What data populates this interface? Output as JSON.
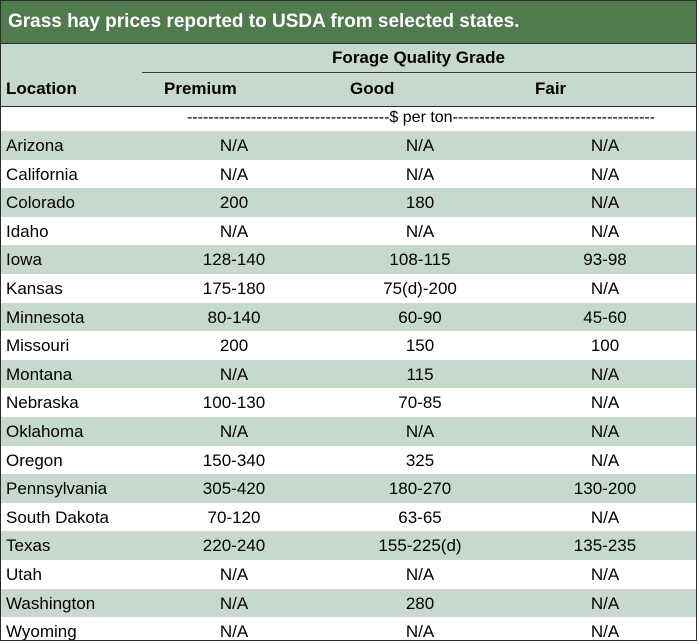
{
  "title": "Grass hay prices reported to USDA from selected states.",
  "header": {
    "grade_title": "Forage Quality Grade",
    "location": "Location",
    "columns": [
      "Premium",
      "Good",
      "Fair"
    ]
  },
  "units": "--------------------------------------$ per ton--------------------------------------",
  "rows": [
    {
      "location": "Arizona",
      "premium": "N/A",
      "good": "N/A",
      "fair": "N/A"
    },
    {
      "location": "California",
      "premium": "N/A",
      "good": "N/A",
      "fair": "N/A"
    },
    {
      "location": "Colorado",
      "premium": "200",
      "good": "180",
      "fair": "N/A"
    },
    {
      "location": "Idaho",
      "premium": "N/A",
      "good": "N/A",
      "fair": "N/A"
    },
    {
      "location": "Iowa",
      "premium": "128-140",
      "good": "108-115",
      "fair": "93-98"
    },
    {
      "location": "Kansas",
      "premium": "175-180",
      "good": "75(d)-200",
      "fair": "N/A"
    },
    {
      "location": "Minnesota",
      "premium": "80-140",
      "good": "60-90",
      "fair": "45-60"
    },
    {
      "location": "Missouri",
      "premium": "200",
      "good": "150",
      "fair": "100"
    },
    {
      "location": "Montana",
      "premium": "N/A",
      "good": "115",
      "fair": "N/A"
    },
    {
      "location": "Nebraska",
      "premium": "100-130",
      "good": "70-85",
      "fair": "N/A"
    },
    {
      "location": "Oklahoma",
      "premium": "N/A",
      "good": "N/A",
      "fair": "N/A"
    },
    {
      "location": "Oregon",
      "premium": "150-340",
      "good": "325",
      "fair": "N/A"
    },
    {
      "location": "Pennsylvania",
      "premium": "305-420",
      "good": "180-270",
      "fair": "130-200"
    },
    {
      "location": "South Dakota",
      "premium": "70-120",
      "good": "63-65",
      "fair": "N/A"
    },
    {
      "location": "Texas",
      "premium": "220-240",
      "good": "155-225(d)",
      "fair": "135-235"
    },
    {
      "location": "Utah",
      "premium": "N/A",
      "good": "N/A",
      "fair": "N/A"
    },
    {
      "location": "Washington",
      "premium": "N/A",
      "good": "280",
      "fair": "N/A"
    },
    {
      "location": "Wyoming",
      "premium": "N/A",
      "good": "N/A",
      "fair": "N/A"
    }
  ]
}
